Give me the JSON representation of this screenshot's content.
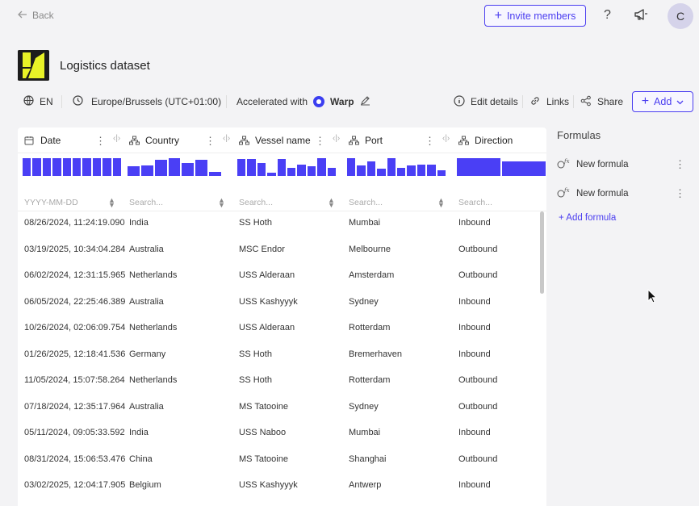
{
  "topbar": {
    "back_label": "Back",
    "invite_label": "Invite members",
    "help_label": "?",
    "avatar_initial": "C"
  },
  "dataset": {
    "title": "Logistics dataset",
    "language": "EN",
    "timezone": "Europe/Brussels (UTC+01:00)",
    "accelerated_label": "Accelerated with",
    "engine": "Warp"
  },
  "actions": {
    "edit_details": "Edit details",
    "links": "Links",
    "share": "Share",
    "add": "Add"
  },
  "accent_color": "#4b3ef0",
  "table": {
    "columns": [
      {
        "name": "Date",
        "icon": "calendar-icon",
        "placeholder": "YYYY-MM-DD",
        "histogram": [
          1,
          1,
          1,
          1,
          1,
          1,
          1,
          1,
          1,
          1
        ]
      },
      {
        "name": "Country",
        "icon": "hierarchy-icon",
        "placeholder": "Search...",
        "histogram": [
          0.55,
          0.6,
          0.9,
          1,
          0.75,
          0.9,
          0.25
        ]
      },
      {
        "name": "Vessel name",
        "icon": "hierarchy-icon",
        "placeholder": "Search...",
        "histogram": [
          0.95,
          0.95,
          0.75,
          0.2,
          0.95,
          0.45,
          0.65,
          0.55,
          1,
          0.45
        ]
      },
      {
        "name": "Port",
        "icon": "hierarchy-icon",
        "placeholder": "Search...",
        "histogram": [
          1,
          0.6,
          0.8,
          0.4,
          1,
          0.45,
          0.6,
          0.65,
          0.65,
          0.3
        ]
      },
      {
        "name": "Direction",
        "icon": "hierarchy-icon",
        "placeholder": "Search...",
        "histogram": [
          1,
          0.8
        ]
      }
    ],
    "rows": [
      [
        "08/26/2024, 11:24:19.090",
        "India",
        "SS Hoth",
        "Mumbai",
        "Inbound"
      ],
      [
        "03/19/2025, 10:34:04.284",
        "Australia",
        "MSC Endor",
        "Melbourne",
        "Outbound"
      ],
      [
        "06/02/2024, 12:31:15.965",
        "Netherlands",
        "USS Alderaan",
        "Amsterdam",
        "Outbound"
      ],
      [
        "06/05/2024, 22:25:46.389",
        "Australia",
        "USS Kashyyyk",
        "Sydney",
        "Inbound"
      ],
      [
        "10/26/2024, 02:06:09.754",
        "Netherlands",
        "USS Alderaan",
        "Rotterdam",
        "Inbound"
      ],
      [
        "01/26/2025, 12:18:41.536",
        "Germany",
        "SS Hoth",
        "Bremerhaven",
        "Inbound"
      ],
      [
        "11/05/2024, 15:07:58.264",
        "Netherlands",
        "SS Hoth",
        "Rotterdam",
        "Outbound"
      ],
      [
        "07/18/2024, 12:35:17.964",
        "Australia",
        "MS Tatooine",
        "Sydney",
        "Outbound"
      ],
      [
        "05/11/2024, 09:05:33.592",
        "India",
        "USS Naboo",
        "Mumbai",
        "Inbound"
      ],
      [
        "08/31/2024, 15:06:53.476",
        "China",
        "MS Tatooine",
        "Shanghai",
        "Outbound"
      ],
      [
        "03/02/2025, 12:04:17.905",
        "Belgium",
        "USS Kashyyyk",
        "Antwerp",
        "Inbound"
      ]
    ]
  },
  "formulas": {
    "title": "Formulas",
    "items": [
      "New formula",
      "New formula"
    ],
    "add_label": "+ Add formula"
  }
}
